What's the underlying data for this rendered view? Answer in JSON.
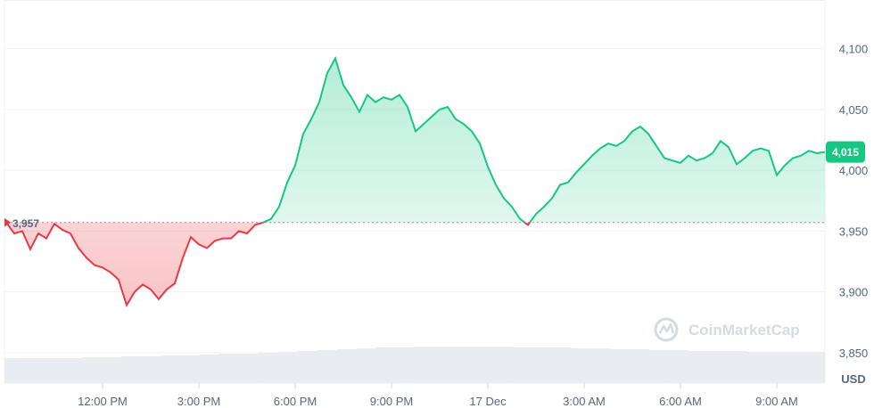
{
  "chart_data": {
    "type": "area",
    "currency_label": "USD",
    "watermark": "CoinMarketCap",
    "open_value": 3957,
    "open_label": "3,957",
    "current_value": 4015,
    "current_label": "4,015",
    "ylim": [
      3825,
      4140
    ],
    "y_ticks": [
      {
        "value": 4100,
        "label": "4,100"
      },
      {
        "value": 4050,
        "label": "4,050"
      },
      {
        "value": 4000,
        "label": "4,000"
      },
      {
        "value": 3950,
        "label": "3,950"
      },
      {
        "value": 3900,
        "label": "3,900"
      },
      {
        "value": 3850,
        "label": "3,850"
      }
    ],
    "x_ticks": [
      {
        "index": 12,
        "label": "12:00 PM"
      },
      {
        "index": 24,
        "label": "3:00 PM"
      },
      {
        "index": 36,
        "label": "6:00 PM"
      },
      {
        "index": 48,
        "label": "9:00 PM"
      },
      {
        "index": 60,
        "label": "17 Dec"
      },
      {
        "index": 72,
        "label": "3:00 AM"
      },
      {
        "index": 84,
        "label": "6:00 AM"
      },
      {
        "index": 96,
        "label": "9:00 AM"
      }
    ],
    "series": [
      {
        "values": [
          3957,
          3948,
          3950,
          3935,
          3948,
          3944,
          3956,
          3951,
          3948,
          3936,
          3928,
          3922,
          3920,
          3916,
          3910,
          3889,
          3900,
          3906,
          3902,
          3894,
          3902,
          3907,
          3928,
          3945,
          3939,
          3936,
          3942,
          3944,
          3944,
          3950,
          3948,
          3955,
          3957,
          3960,
          3970,
          3990,
          4004,
          4030,
          4042,
          4056,
          4080,
          4092,
          4070,
          4060,
          4048,
          4062,
          4056,
          4060,
          4058,
          4062,
          4052,
          4032,
          4038,
          4044,
          4050,
          4052,
          4042,
          4038,
          4032,
          4022,
          4003,
          3988,
          3977,
          3970,
          3960,
          3955,
          3964,
          3970,
          3977,
          3988,
          3990,
          3998,
          4005,
          4012,
          4018,
          4022,
          4020,
          4024,
          4032,
          4036,
          4030,
          4020,
          4010,
          4008,
          4006,
          4012,
          4008,
          4010,
          4014,
          4024,
          4019,
          4005,
          4010,
          4016,
          4018,
          4016,
          3996,
          4004,
          4010,
          4012,
          4016,
          4014,
          4015
        ],
        "colors": {
          "up": "#16c784",
          "down": "#ea3943"
        }
      }
    ],
    "volume": [
      28,
      28,
      28,
      28,
      29,
      29,
      30,
      30,
      31,
      31,
      32,
      33,
      33,
      34,
      35,
      36,
      37,
      38,
      39,
      40,
      40,
      41,
      41,
      41,
      41,
      41,
      40,
      40,
      40,
      39,
      39,
      38,
      38,
      37,
      37,
      36,
      36,
      36,
      35,
      35,
      35,
      35
    ],
    "grid": true
  }
}
